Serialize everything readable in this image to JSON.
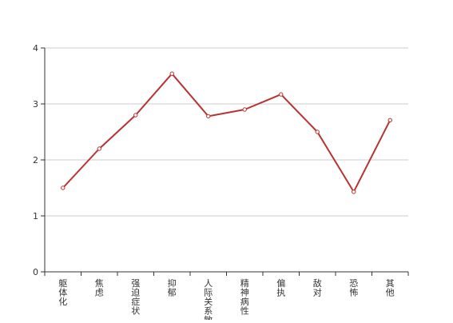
{
  "chart_data": {
    "type": "line",
    "title": "",
    "xlabel": "",
    "ylabel": "",
    "categories": [
      "躯体化",
      "焦虑",
      "强迫症状",
      "抑郁",
      "人际关系敏感",
      "精神病性",
      "偏执",
      "敌对",
      "恐怖",
      "其他"
    ],
    "series": [
      {
        "values": [
          1.5,
          2.2,
          2.8,
          3.54,
          2.78,
          2.9,
          3.17,
          2.5,
          1.43,
          2.71
        ]
      }
    ],
    "ylim": [
      0,
      4
    ],
    "yticks": [
      "0",
      "1",
      "2",
      "3",
      "4"
    ],
    "grid": true,
    "legend": "none",
    "colors": {
      "line": "#b83232",
      "grid": "#cccccc",
      "axis": "#333333"
    }
  }
}
